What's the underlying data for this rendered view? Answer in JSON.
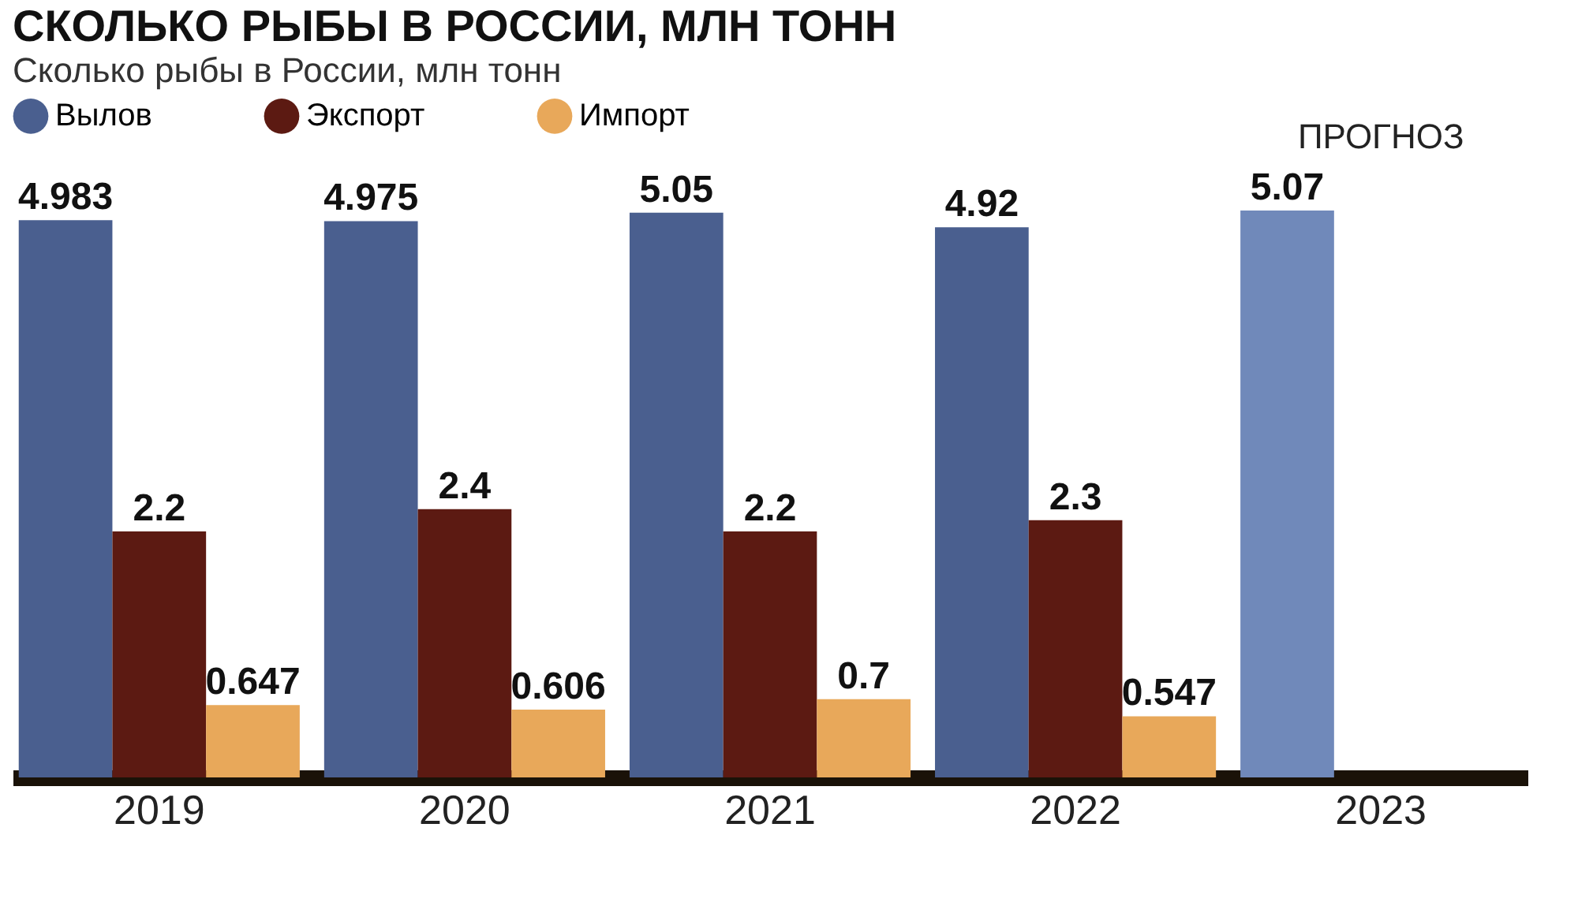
{
  "chart_data": {
    "type": "bar",
    "title": "СКОЛЬКО РЫБЫ В РОССИИ, МЛН ТОНН",
    "subtitle": "Сколько рыбы в России, млн тонн",
    "categories": [
      "2019",
      "2020",
      "2021",
      "2022",
      "2023"
    ],
    "series": [
      {
        "name": "Вылов",
        "color": "#4a5f8f",
        "colors": [
          "#4a5f8f",
          "#4a5f8f",
          "#4a5f8f",
          "#4a5f8f",
          "#7089ba"
        ],
        "values": [
          4.983,
          4.975,
          5.05,
          4.92,
          5.07
        ]
      },
      {
        "name": "Экспорт",
        "color": "#5c1a12",
        "values": [
          2.2,
          2.4,
          2.2,
          2.3,
          null
        ]
      },
      {
        "name": "Импорт",
        "color": "#e8a85a",
        "values": [
          0.647,
          0.606,
          0.7,
          0.547,
          null
        ]
      }
    ],
    "annotations": [
      "ПРОГНОЗ"
    ],
    "data_labels": true,
    "legend": "top left"
  }
}
